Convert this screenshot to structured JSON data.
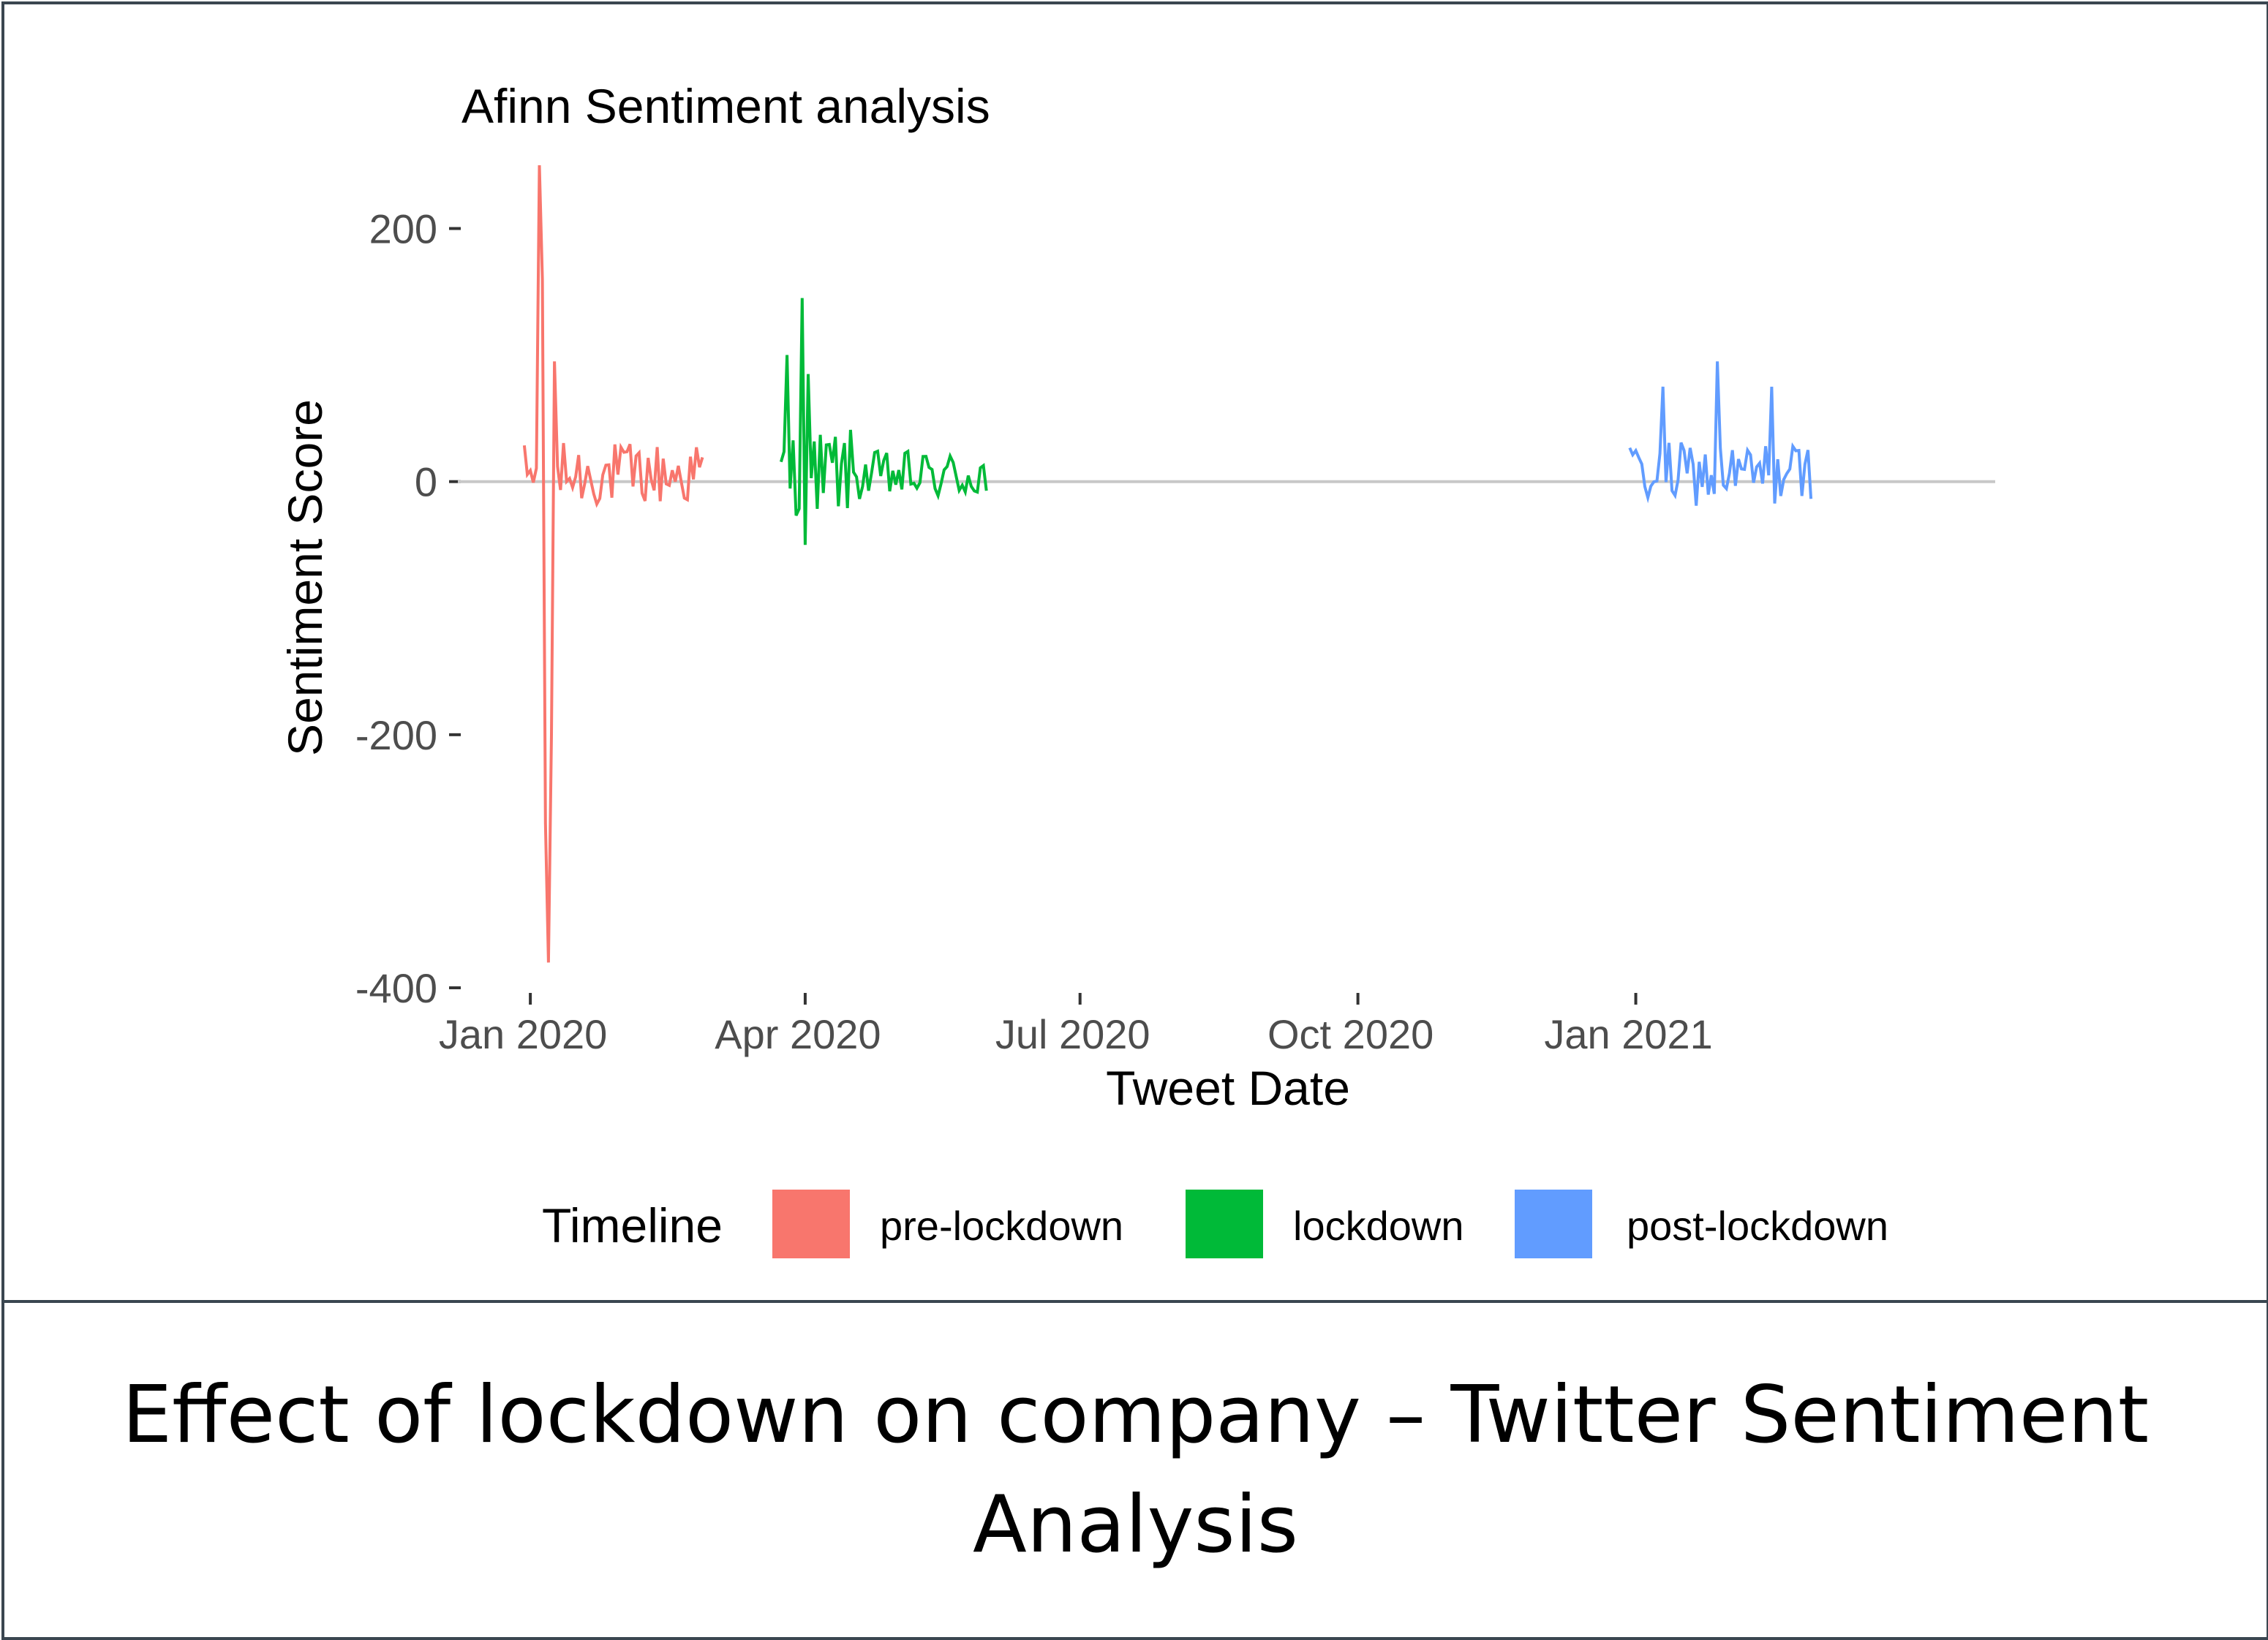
{
  "chart_data": {
    "type": "line",
    "title": "Afinn Sentiment analysis",
    "xlabel": "Tweet Date",
    "ylabel": "Sentiment Score",
    "ylim": [
      -400,
      250
    ],
    "xlim": [
      "2019-12-08",
      "2021-04-30"
    ],
    "y_ticks": [
      {
        "value": 200,
        "label": "200"
      },
      {
        "value": 0,
        "label": "0"
      },
      {
        "value": -200,
        "label": "-200"
      },
      {
        "value": -400,
        "label": "-400"
      }
    ],
    "x_ticks": [
      {
        "date": "2020-01-01",
        "label": "Jan 2020"
      },
      {
        "date": "2020-04-01",
        "label": "Apr 2020"
      },
      {
        "date": "2020-07-01",
        "label": "Jul 2020"
      },
      {
        "date": "2020-10-01",
        "label": "Oct 2020"
      },
      {
        "date": "2021-01-01",
        "label": "Jan 2021"
      }
    ],
    "grid": false,
    "zero_line": true,
    "legend": {
      "title": "Timeline",
      "position": "bottom",
      "entries": [
        {
          "label": "pre-lockdown",
          "color": "#f8766d"
        },
        {
          "label": "lockdown",
          "color": "#00ba38"
        },
        {
          "label": "post-lockdown",
          "color": "#619cff"
        }
      ]
    },
    "series": [
      {
        "name": "pre-lockdown",
        "color": "#f8766d",
        "start": "2019-12-30",
        "end": "2020-02-27",
        "x": [
          "2020-01-04",
          "2020-01-05",
          "2020-01-06",
          "2020-01-07",
          "2020-01-08",
          "2020-01-09"
        ],
        "values": [
          250,
          160,
          -270,
          -380,
          -200,
          95
        ]
      },
      {
        "name": "lockdown",
        "color": "#00ba38",
        "start": "2020-03-24",
        "end": "2020-05-31",
        "x": [
          "2020-03-26",
          "2020-03-31",
          "2020-04-01",
          "2020-04-02"
        ],
        "values": [
          100,
          145,
          -50,
          85
        ]
      },
      {
        "name": "post-lockdown",
        "color": "#619cff",
        "start": "2020-12-30",
        "end": "2021-02-28",
        "x": [
          "2021-01-10",
          "2021-01-28",
          "2021-02-15"
        ],
        "values": [
          75,
          95,
          75
        ]
      }
    ]
  },
  "caption": "Effect of lockdown on company – Twitter Sentiment Analysis"
}
